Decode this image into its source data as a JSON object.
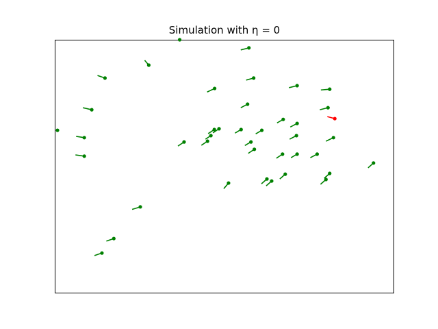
{
  "chart_data": {
    "type": "scatter",
    "title": "Simulation with η = 0",
    "xlabel": "",
    "ylabel": "",
    "xlim": [
      0,
      10
    ],
    "ylim": [
      0,
      10
    ],
    "ticks_visible": false,
    "grid": false,
    "legend": "none",
    "colors": {
      "agent": "#008000",
      "highlighted_agent": "#ff0000",
      "axes_frame": "#000000"
    },
    "agents": [
      {
        "x": 3.68,
        "y": 10.0,
        "heading_dx": 0.0,
        "heading_dy": 0.0,
        "highlight": false
      },
      {
        "x": 5.72,
        "y": 9.68,
        "heading_dx": -0.24,
        "heading_dy": -0.08,
        "highlight": false
      },
      {
        "x": 2.77,
        "y": 9.0,
        "heading_dx": -0.12,
        "heading_dy": 0.19,
        "highlight": false
      },
      {
        "x": 1.48,
        "y": 8.49,
        "heading_dx": -0.22,
        "heading_dy": 0.1,
        "highlight": false
      },
      {
        "x": 5.86,
        "y": 8.49,
        "heading_dx": -0.22,
        "heading_dy": -0.08,
        "highlight": false
      },
      {
        "x": 7.14,
        "y": 8.19,
        "heading_dx": -0.24,
        "heading_dy": -0.08,
        "highlight": false
      },
      {
        "x": 4.71,
        "y": 8.08,
        "heading_dx": -0.22,
        "heading_dy": -0.14,
        "highlight": false
      },
      {
        "x": 8.1,
        "y": 8.05,
        "heading_dx": -0.26,
        "heading_dy": -0.03,
        "highlight": false
      },
      {
        "x": 5.68,
        "y": 7.46,
        "heading_dx": -0.2,
        "heading_dy": -0.14,
        "highlight": false
      },
      {
        "x": 1.09,
        "y": 7.24,
        "heading_dx": -0.26,
        "heading_dy": 0.08,
        "highlight": false
      },
      {
        "x": 8.05,
        "y": 7.32,
        "heading_dx": -0.24,
        "heading_dy": -0.08,
        "highlight": false
      },
      {
        "x": 8.25,
        "y": 6.89,
        "heading_dx": -0.22,
        "heading_dy": 0.08,
        "highlight": true
      },
      {
        "x": 6.73,
        "y": 6.86,
        "heading_dx": -0.18,
        "heading_dy": -0.14,
        "highlight": false
      },
      {
        "x": 7.14,
        "y": 6.7,
        "heading_dx": -0.2,
        "heading_dy": -0.14,
        "highlight": false
      },
      {
        "x": 0.08,
        "y": 6.43,
        "heading_dx": 0.0,
        "heading_dy": 0.0,
        "highlight": false
      },
      {
        "x": 4.84,
        "y": 6.49,
        "heading_dx": -0.18,
        "heading_dy": -0.16,
        "highlight": false
      },
      {
        "x": 4.7,
        "y": 6.46,
        "heading_dx": -0.18,
        "heading_dy": -0.16,
        "highlight": false
      },
      {
        "x": 5.49,
        "y": 6.46,
        "heading_dx": -0.18,
        "heading_dy": -0.14,
        "highlight": false
      },
      {
        "x": 6.1,
        "y": 6.43,
        "heading_dx": -0.18,
        "heading_dy": -0.14,
        "highlight": false
      },
      {
        "x": 4.6,
        "y": 6.22,
        "heading_dx": -0.16,
        "heading_dy": -0.14,
        "highlight": false
      },
      {
        "x": 7.12,
        "y": 6.22,
        "heading_dx": -0.2,
        "heading_dy": -0.14,
        "highlight": false
      },
      {
        "x": 8.21,
        "y": 6.14,
        "heading_dx": -0.22,
        "heading_dy": -0.14,
        "highlight": false
      },
      {
        "x": 0.87,
        "y": 6.14,
        "heading_dx": -0.24,
        "heading_dy": 0.05,
        "highlight": false
      },
      {
        "x": 3.81,
        "y": 5.97,
        "heading_dx": -0.18,
        "heading_dy": -0.16,
        "highlight": false
      },
      {
        "x": 4.5,
        "y": 6.0,
        "heading_dx": -0.18,
        "heading_dy": -0.16,
        "highlight": false
      },
      {
        "x": 5.78,
        "y": 5.97,
        "heading_dx": -0.18,
        "heading_dy": -0.14,
        "highlight": false
      },
      {
        "x": 5.88,
        "y": 5.68,
        "heading_dx": -0.18,
        "heading_dy": -0.16,
        "highlight": false
      },
      {
        "x": 6.71,
        "y": 5.49,
        "heading_dx": -0.18,
        "heading_dy": -0.16,
        "highlight": false
      },
      {
        "x": 7.14,
        "y": 5.49,
        "heading_dx": -0.18,
        "heading_dy": -0.14,
        "highlight": false
      },
      {
        "x": 7.73,
        "y": 5.49,
        "heading_dx": -0.2,
        "heading_dy": -0.14,
        "highlight": false
      },
      {
        "x": 0.87,
        "y": 5.41,
        "heading_dx": -0.26,
        "heading_dy": 0.05,
        "highlight": false
      },
      {
        "x": 9.39,
        "y": 5.14,
        "heading_dx": -0.16,
        "heading_dy": -0.19,
        "highlight": false
      },
      {
        "x": 8.1,
        "y": 4.73,
        "heading_dx": -0.16,
        "heading_dy": -0.19,
        "highlight": false
      },
      {
        "x": 6.79,
        "y": 4.7,
        "heading_dx": -0.16,
        "heading_dy": -0.19,
        "highlight": false
      },
      {
        "x": 6.25,
        "y": 4.51,
        "heading_dx": -0.16,
        "heading_dy": -0.19,
        "highlight": false
      },
      {
        "x": 6.39,
        "y": 4.43,
        "heading_dx": -0.16,
        "heading_dy": -0.19,
        "highlight": false
      },
      {
        "x": 7.99,
        "y": 4.49,
        "heading_dx": -0.16,
        "heading_dy": -0.19,
        "highlight": false
      },
      {
        "x": 5.12,
        "y": 4.35,
        "heading_dx": -0.14,
        "heading_dy": -0.22,
        "highlight": false
      },
      {
        "x": 2.52,
        "y": 3.41,
        "heading_dx": -0.24,
        "heading_dy": -0.1,
        "highlight": false
      },
      {
        "x": 1.74,
        "y": 2.16,
        "heading_dx": -0.22,
        "heading_dy": -0.1,
        "highlight": false
      },
      {
        "x": 1.39,
        "y": 1.59,
        "heading_dx": -0.22,
        "heading_dy": -0.1,
        "highlight": false
      }
    ]
  }
}
